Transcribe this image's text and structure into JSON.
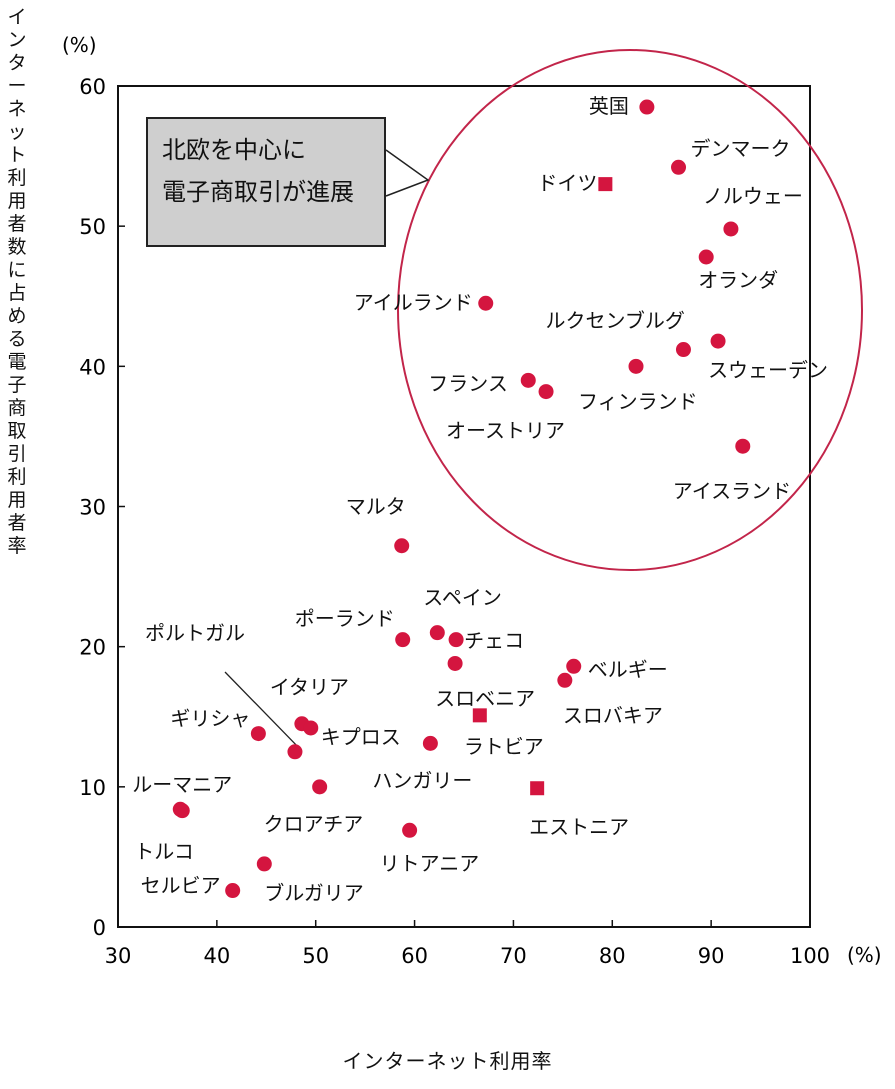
{
  "axes": {
    "x_label": "インターネット利用率",
    "y_label": "インターネット利用者数に占める電子商取引利用者率",
    "x_unit": "(%)",
    "y_unit": "(%)"
  },
  "callout": {
    "line1": "北欧を中心に",
    "line2": "電子商取引が進展"
  },
  "colors": {
    "point": "#d4153f",
    "circle": "#c2254a",
    "frame": "#111111"
  },
  "chart_data": {
    "type": "scatter",
    "xlim": [
      30,
      100
    ],
    "ylim": [
      0,
      60
    ],
    "x_ticks": [
      30,
      40,
      50,
      60,
      70,
      80,
      90,
      100
    ],
    "y_ticks": [
      0,
      10,
      20,
      30,
      40,
      50,
      60
    ],
    "grid": false,
    "points": [
      {
        "label": "英国",
        "x": 83.5,
        "y": 58.5
      },
      {
        "label": "デンマーク",
        "x": 86.7,
        "y": 54.2
      },
      {
        "label": "ドイツ",
        "x": 79.3,
        "y": 53
      },
      {
        "label": "ノルウェー",
        "x": 92,
        "y": 49.8
      },
      {
        "label": "オランダ",
        "x": 89.5,
        "y": 47.8
      },
      {
        "label": "アイルランド",
        "x": 67.2,
        "y": 44.5
      },
      {
        "label": "ルクセンブルグ",
        "x": 87.2,
        "y": 41.2
      },
      {
        "label": "スウェーデン",
        "x": 90.7,
        "y": 41.8
      },
      {
        "label": "フィンランド",
        "x": 82.4,
        "y": 40
      },
      {
        "label": "フランス",
        "x": 71.5,
        "y": 39
      },
      {
        "label": "オーストリア",
        "x": 73.3,
        "y": 38.2
      },
      {
        "label": "アイスランド",
        "x": 93.2,
        "y": 34.3
      },
      {
        "label": "マルタ",
        "x": 58.7,
        "y": 27.2
      },
      {
        "label": "ポーランド",
        "x": 58.8,
        "y": 20.5
      },
      {
        "label": "スペイン",
        "x": 62.3,
        "y": 21
      },
      {
        "label": "チェコ",
        "x": 64.2,
        "y": 20.5
      },
      {
        "label": "スロベニア",
        "x": 64.1,
        "y": 18.8
      },
      {
        "label": "ベルギー",
        "x": 76.1,
        "y": 18.6
      },
      {
        "label": "スロバキア",
        "x": 75.2,
        "y": 17.6
      },
      {
        "label": "ラトビア",
        "x": 66.6,
        "y": 15.1
      },
      {
        "label": "イタリア",
        "x": 48.6,
        "y": 14.5
      },
      {
        "label": "キプロス",
        "x": 49.5,
        "y": 14.2
      },
      {
        "label": "ギリシャ",
        "x": 44.2,
        "y": 13.8
      },
      {
        "label": "ポルトガル",
        "x": 47.9,
        "y": 12.5
      },
      {
        "label": "ハンガリー",
        "x": 61.6,
        "y": 13.1
      },
      {
        "label": "ルーマニア",
        "x": 36.3,
        "y": 8.4
      },
      {
        "label": "クロアチア",
        "x": 50.4,
        "y": 10
      },
      {
        "label": "エストニア",
        "x": 72.4,
        "y": 9.9
      },
      {
        "label": "リトアニア",
        "x": 59.5,
        "y": 6.9
      },
      {
        "label": "トルコ",
        "x": 36.5,
        "y": 8.3
      },
      {
        "label": "セルビア",
        "x": 41.6,
        "y": 2.6
      },
      {
        "label": "ブルガリア",
        "x": 44.8,
        "y": 4.5
      }
    ]
  }
}
